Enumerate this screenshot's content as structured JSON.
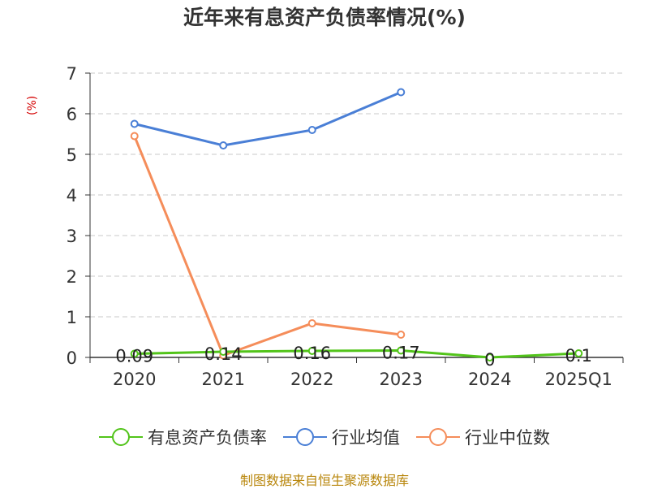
{
  "chart_data": {
    "type": "line",
    "title": "近年来有息资产负债率情况(%)",
    "ylabel": "(%)",
    "categories": [
      "2020",
      "2021",
      "2022",
      "2023",
      "2024",
      "2025Q1"
    ],
    "ylim": [
      0,
      7
    ],
    "yticks": [
      "0",
      "1",
      "2",
      "3",
      "4",
      "5",
      "6",
      "7"
    ],
    "grid": true,
    "legend_position": "bottom",
    "series": [
      {
        "name": "有息资产负债率",
        "color": "#52c41a",
        "values": [
          0.09,
          0.14,
          0.16,
          0.17,
          0,
          0.1
        ],
        "labels": [
          "0.09",
          "0.14",
          "0.16",
          "0.17",
          "0",
          "0.1"
        ]
      },
      {
        "name": "行业均值",
        "color": "#4a7fd6",
        "values": [
          5.75,
          5.22,
          5.6,
          6.53,
          null,
          null
        ]
      },
      {
        "name": "行业中位数",
        "color": "#f58d5a",
        "values": [
          5.45,
          0.05,
          0.84,
          0.56,
          null,
          null
        ]
      }
    ],
    "source": "制图数据来自恒生聚源数据库"
  }
}
